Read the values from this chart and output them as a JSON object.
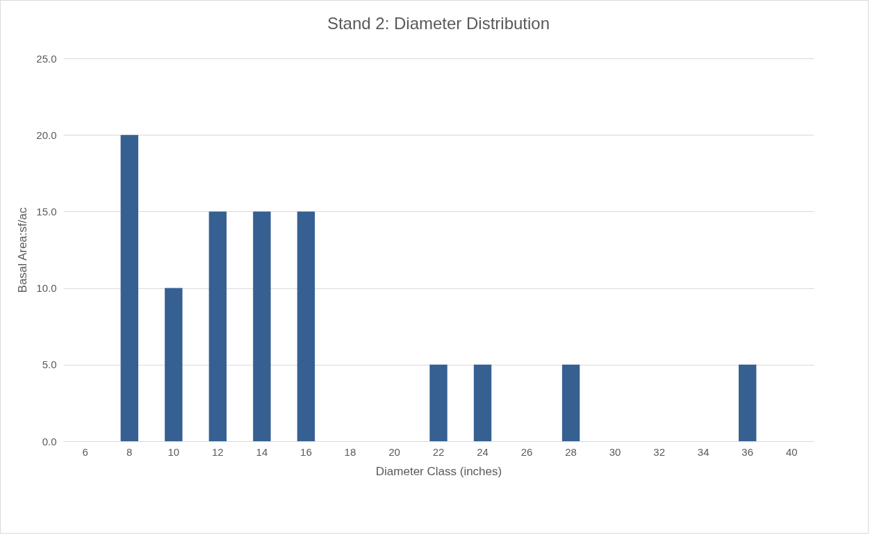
{
  "chart_data": {
    "type": "bar",
    "title": "Stand 2: Diameter Distribution",
    "xlabel": "Diameter Class (inches)",
    "ylabel": "Basal Area:sf/ac",
    "categories": [
      "6",
      "8",
      "10",
      "12",
      "14",
      "16",
      "18",
      "20",
      "22",
      "24",
      "26",
      "28",
      "30",
      "32",
      "34",
      "36",
      "40"
    ],
    "values": [
      0,
      20,
      10,
      15,
      15,
      15,
      0,
      0,
      5,
      5,
      0,
      5,
      0,
      0,
      0,
      5,
      0
    ],
    "color": "#366092",
    "ylim": [
      0,
      25
    ],
    "yticks": [
      {
        "value": 0,
        "label": "0.0"
      },
      {
        "value": 5,
        "label": "5.0"
      },
      {
        "value": 10,
        "label": "10.0"
      },
      {
        "value": 15,
        "label": "15.0"
      },
      {
        "value": 20,
        "label": "20.0"
      },
      {
        "value": 25,
        "label": "25.0"
      }
    ],
    "grid": "y"
  }
}
